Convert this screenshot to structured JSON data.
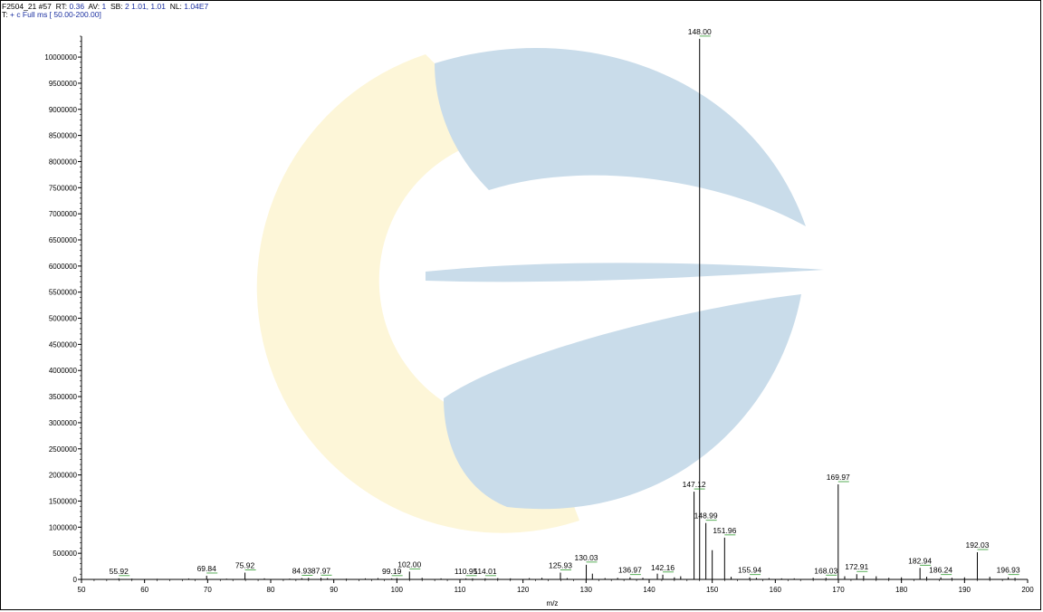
{
  "header": {
    "line1": {
      "scan_id": "F2504_21 #57",
      "rt_label": "RT:",
      "rt": "0.36",
      "av_label": "AV:",
      "av": "1",
      "sb_label": "SB:",
      "sb": "2 1.01, 1.01",
      "nl_label": "NL:",
      "nl": "1.04E7"
    },
    "line2": {
      "t_label": "T:",
      "filter": "+ c Full ms [ 50.00-200.00]"
    }
  },
  "colors": {
    "peak": "#000000",
    "label": "#000000",
    "label_underline": "#2e9a2e",
    "watermark_blue": "#c9dcea",
    "watermark_yellow": "#fdf6d8"
  },
  "chart_data": {
    "type": "bar",
    "title": "",
    "xlabel": "m/z",
    "ylabel": "",
    "xlim": [
      50,
      200
    ],
    "ylim": [
      0,
      10400000
    ],
    "xticks": [
      50,
      60,
      70,
      80,
      90,
      100,
      110,
      120,
      130,
      140,
      150,
      160,
      170,
      180,
      190,
      200
    ],
    "yticks": [
      0,
      500000,
      1000000,
      1500000,
      2000000,
      2500000,
      3000000,
      3500000,
      4000000,
      4500000,
      5000000,
      5500000,
      6000000,
      6500000,
      7000000,
      7500000,
      8000000,
      8500000,
      9000000,
      9500000,
      10000000
    ],
    "grid": false,
    "legend": "none",
    "peaks": [
      {
        "mz": 55.92,
        "intensity": 20000,
        "label": "55.92"
      },
      {
        "mz": 69.84,
        "intensity": 70000,
        "label": "69.84"
      },
      {
        "mz": 75.92,
        "intensity": 130000,
        "label": "75.92"
      },
      {
        "mz": 84.93,
        "intensity": 25000,
        "label": "84.93"
      },
      {
        "mz": 87.97,
        "intensity": 30000,
        "label": "87.97"
      },
      {
        "mz": 99.19,
        "intensity": 20000,
        "label": "99.19"
      },
      {
        "mz": 102.0,
        "intensity": 150000,
        "label": "102.00"
      },
      {
        "mz": 110.95,
        "intensity": 20000,
        "label": "110.95"
      },
      {
        "mz": 114.01,
        "intensity": 20000,
        "label": "114.01"
      },
      {
        "mz": 125.93,
        "intensity": 130000,
        "label": "125.93"
      },
      {
        "mz": 130.03,
        "intensity": 280000,
        "label": "130.03"
      },
      {
        "mz": 131.0,
        "intensity": 110000,
        "label": ""
      },
      {
        "mz": 136.97,
        "intensity": 40000,
        "label": "136.97"
      },
      {
        "mz": 141.3,
        "intensity": 110000,
        "label": ""
      },
      {
        "mz": 142.16,
        "intensity": 90000,
        "label": "142.16"
      },
      {
        "mz": 147.12,
        "intensity": 1680000,
        "label": "147.12"
      },
      {
        "mz": 148.0,
        "intensity": 10350000,
        "label": "148.00"
      },
      {
        "mz": 148.99,
        "intensity": 1080000,
        "label": "148.99"
      },
      {
        "mz": 150.0,
        "intensity": 560000,
        "label": ""
      },
      {
        "mz": 151.96,
        "intensity": 800000,
        "label": "151.96"
      },
      {
        "mz": 155.94,
        "intensity": 40000,
        "label": "155.94"
      },
      {
        "mz": 168.03,
        "intensity": 30000,
        "label": "168.03"
      },
      {
        "mz": 169.97,
        "intensity": 1820000,
        "label": "169.97"
      },
      {
        "mz": 172.91,
        "intensity": 100000,
        "label": "172.91"
      },
      {
        "mz": 182.94,
        "intensity": 220000,
        "label": "182.94"
      },
      {
        "mz": 186.24,
        "intensity": 40000,
        "label": "186.24"
      },
      {
        "mz": 192.03,
        "intensity": 520000,
        "label": "192.03"
      },
      {
        "mz": 196.93,
        "intensity": 40000,
        "label": "196.93"
      }
    ],
    "minor_peaks": [
      {
        "mz": 58.0,
        "intensity": 15000
      },
      {
        "mz": 62.0,
        "intensity": 12000
      },
      {
        "mz": 67.0,
        "intensity": 18000
      },
      {
        "mz": 73.0,
        "intensity": 15000
      },
      {
        "mz": 79.0,
        "intensity": 20000
      },
      {
        "mz": 83.0,
        "intensity": 15000
      },
      {
        "mz": 86.0,
        "intensity": 30000
      },
      {
        "mz": 89.0,
        "intensity": 25000
      },
      {
        "mz": 92.0,
        "intensity": 15000
      },
      {
        "mz": 95.0,
        "intensity": 20000
      },
      {
        "mz": 97.0,
        "intensity": 25000
      },
      {
        "mz": 100.0,
        "intensity": 25000
      },
      {
        "mz": 104.0,
        "intensity": 30000
      },
      {
        "mz": 107.0,
        "intensity": 20000
      },
      {
        "mz": 112.0,
        "intensity": 20000
      },
      {
        "mz": 116.0,
        "intensity": 25000
      },
      {
        "mz": 118.0,
        "intensity": 20000
      },
      {
        "mz": 121.0,
        "intensity": 25000
      },
      {
        "mz": 123.0,
        "intensity": 30000
      },
      {
        "mz": 127.0,
        "intensity": 25000
      },
      {
        "mz": 133.0,
        "intensity": 25000
      },
      {
        "mz": 135.0,
        "intensity": 30000
      },
      {
        "mz": 139.0,
        "intensity": 30000
      },
      {
        "mz": 144.0,
        "intensity": 40000
      },
      {
        "mz": 145.0,
        "intensity": 60000
      },
      {
        "mz": 153.0,
        "intensity": 50000
      },
      {
        "mz": 157.0,
        "intensity": 30000
      },
      {
        "mz": 159.0,
        "intensity": 25000
      },
      {
        "mz": 161.0,
        "intensity": 20000
      },
      {
        "mz": 163.0,
        "intensity": 20000
      },
      {
        "mz": 166.0,
        "intensity": 30000
      },
      {
        "mz": 171.0,
        "intensity": 60000
      },
      {
        "mz": 174.0,
        "intensity": 70000
      },
      {
        "mz": 176.0,
        "intensity": 60000
      },
      {
        "mz": 178.0,
        "intensity": 30000
      },
      {
        "mz": 180.0,
        "intensity": 40000
      },
      {
        "mz": 184.0,
        "intensity": 50000
      },
      {
        "mz": 188.0,
        "intensity": 30000
      },
      {
        "mz": 190.0,
        "intensity": 40000
      },
      {
        "mz": 194.0,
        "intensity": 50000
      },
      {
        "mz": 198.0,
        "intensity": 30000
      }
    ]
  }
}
